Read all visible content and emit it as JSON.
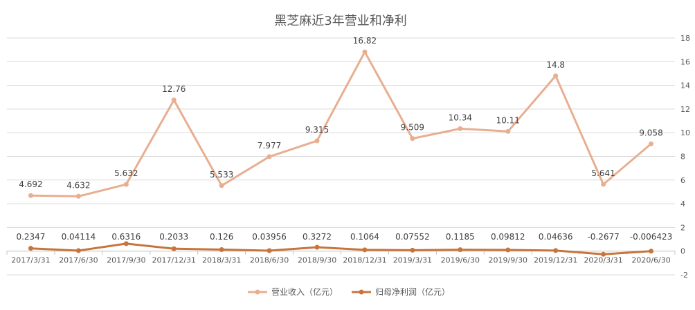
{
  "chart_data": {
    "type": "line",
    "title": "黑芝麻近3年营业和净利",
    "xlabel": "",
    "ylabel": "",
    "categories": [
      "2017/3/31",
      "2017/6/30",
      "2017/9/30",
      "2017/12/31",
      "2018/3/31",
      "2018/6/30",
      "2018/9/30",
      "2018/12/31",
      "2019/3/31",
      "2019/6/30",
      "2019/9/30",
      "2019/12/31",
      "2020/3/31",
      "2020/6/30"
    ],
    "ylim": [
      -2,
      18
    ],
    "yticks": [
      -2,
      0,
      2,
      4,
      6,
      8,
      10,
      12,
      14,
      16,
      18
    ],
    "ytick_labels": [
      "-2",
      "0",
      "2",
      "4",
      "6",
      "8",
      "10",
      "12",
      "14",
      "16",
      "18"
    ],
    "y_axis_side": "right",
    "grid": true,
    "legend_position": "bottom",
    "series": [
      {
        "name": "营业收入（亿元）",
        "color": "#E8AE90",
        "values": [
          4.692,
          4.632,
          5.632,
          12.76,
          5.533,
          7.977,
          9.315,
          16.82,
          9.509,
          10.34,
          10.11,
          14.8,
          5.641,
          9.058
        ],
        "labels": [
          "4.692",
          "4.632",
          "5.632",
          "12.76",
          "5.533",
          "7.977",
          "9.315",
          "16.82",
          "9.509",
          "10.34",
          "10.11",
          "14.8",
          "5.641",
          "9.058"
        ]
      },
      {
        "name": "归母净利润（亿元）",
        "color": "#C8743A",
        "values": [
          0.2347,
          0.04114,
          0.6316,
          0.2033,
          0.126,
          0.03956,
          0.3272,
          0.1064,
          0.07552,
          0.1185,
          0.09812,
          0.04636,
          -0.2677,
          -0.006423
        ],
        "labels": [
          "0.2347",
          "0.04114",
          "0.6316",
          "0.2033",
          "0.126",
          "0.03956",
          "0.3272",
          "0.1064",
          "0.07552",
          "0.1185",
          "0.09812",
          "0.04636",
          "-0.2677",
          "-0.006423"
        ]
      }
    ]
  }
}
